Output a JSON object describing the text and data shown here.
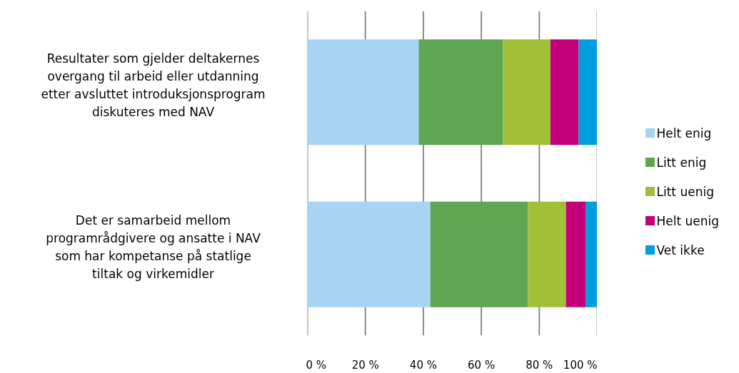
{
  "chart_data": {
    "type": "bar",
    "orientation": "horizontal",
    "stacked": true,
    "categories": [
      "Resultater som gjelder deltakernes\novergang til arbeid eller utdanning\netter avsluttet introduksjonsprogram\ndiskuteres med NAV",
      "Det er samarbeid mellom\nprogramrådgivere og ansatte i NAV\nsom har kompetanse på statlige\ntiltak og virkemidler"
    ],
    "series": [
      {
        "name": "Helt enig",
        "color": "#a8d4f4",
        "values": [
          38.4,
          42.4
        ]
      },
      {
        "name": "Litt enig",
        "color": "#5ea651",
        "values": [
          29.1,
          33.7
        ]
      },
      {
        "name": "Litt uenig",
        "color": "#a1bf37",
        "values": [
          16.3,
          13.1
        ]
      },
      {
        "name": "Helt uenig",
        "color": "#c3007a",
        "values": [
          9.8,
          6.9
        ]
      },
      {
        "name": "Vet ikke",
        "color": "#009ede",
        "values": [
          6.4,
          3.9
        ]
      }
    ],
    "xlim": [
      0,
      100
    ],
    "xticks": [
      {
        "value": 0,
        "label": "0 %"
      },
      {
        "value": 20,
        "label": "20 %"
      },
      {
        "value": 40,
        "label": "40 %"
      },
      {
        "value": 60,
        "label": "60 %"
      },
      {
        "value": 80,
        "label": "80 %"
      },
      {
        "value": 100,
        "label": "100 %"
      }
    ],
    "grid": "x",
    "legend": "right"
  }
}
